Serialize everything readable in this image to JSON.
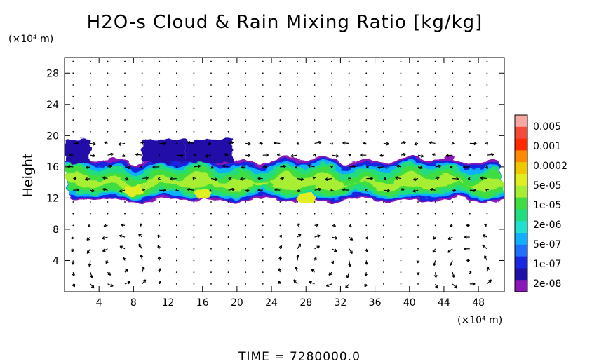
{
  "chart_data": {
    "type": "heatmap",
    "title": "H2O-s Cloud & Rain Mixing Ratio [kg/kg]",
    "y_unit": "(×10⁴ m)",
    "x_unit": "(×10⁴ m)",
    "ylabel": "Height",
    "footer": "TIME = 7280000.0",
    "xlim": [
      0,
      51
    ],
    "ylim": [
      0,
      30
    ],
    "x_ticks": [
      4,
      8,
      12,
      16,
      20,
      24,
      28,
      32,
      36,
      40,
      44,
      48
    ],
    "y_ticks": [
      4,
      8,
      12,
      16,
      20,
      24,
      28
    ],
    "colorbar": {
      "labels": [
        "0.005",
        "0.001",
        "0.0002",
        "5e-05",
        "1e-05",
        "2e-06",
        "5e-07",
        "1e-07",
        "2e-08"
      ],
      "colors": [
        "#f7a8a0",
        "#f44a3a",
        "#ff2a00",
        "#ff8a00",
        "#f0c800",
        "#e0ee20",
        "#a8ee30",
        "#40dd40",
        "#20dd80",
        "#20e0d0",
        "#10b0ff",
        "#2070ff",
        "#1828e0",
        "#2010a8",
        "#8a18b8"
      ]
    },
    "cloud_layer": {
      "base_height": 12,
      "top_height": 16.5,
      "anvil_top_height": 19.5,
      "x_extent": [
        0,
        51
      ],
      "peak_value_region": [
        [
          8,
          13
        ],
        [
          16,
          12.5
        ],
        [
          28,
          12
        ]
      ]
    },
    "wind_field": "vector arrows throughout domain; strong horizontal flow near 14-16 and 19-20; circulation cells near x=4-8, 28-32, 44-50 below height 10",
    "grid": false
  }
}
